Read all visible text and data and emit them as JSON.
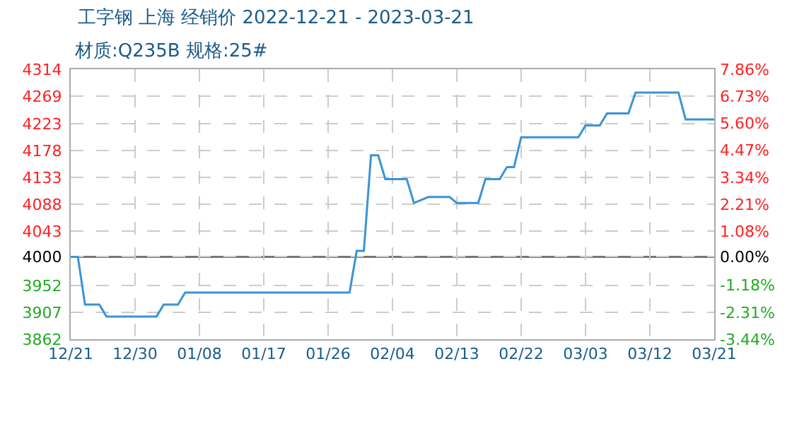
{
  "chart_data": {
    "type": "line",
    "title": "工字钢 上海 经销价 2022-12-21 - 2023-03-21",
    "subtitle": "材质:Q235B 规格:25#",
    "x": [
      "2022-12-21",
      "2022-12-22",
      "2022-12-23",
      "2022-12-25",
      "2022-12-26",
      "2023-01-02",
      "2023-01-03",
      "2023-01-05",
      "2023-01-06",
      "2023-01-29",
      "2023-01-30",
      "2023-01-31",
      "2023-02-01",
      "2023-02-02",
      "2023-02-03",
      "2023-02-06",
      "2023-02-07",
      "2023-02-09",
      "2023-02-12",
      "2023-02-13",
      "2023-02-16",
      "2023-02-17",
      "2023-02-19",
      "2023-02-20",
      "2023-02-21",
      "2023-02-22",
      "2023-03-02",
      "2023-03-03",
      "2023-03-05",
      "2023-03-06",
      "2023-03-09",
      "2023-03-10",
      "2023-03-16",
      "2023-03-17",
      "2023-03-21"
    ],
    "series": [
      {
        "color": "#3a94d4",
        "values": [
          4000,
          4000,
          3920,
          3920,
          3900,
          3900,
          3920,
          3920,
          3940,
          3940,
          4010,
          4010,
          4170,
          4170,
          4130,
          4130,
          4090,
          4100,
          4100,
          4090,
          4090,
          4130,
          4130,
          4150,
          4150,
          4200,
          4200,
          4220,
          4220,
          4240,
          4240,
          4275,
          4275,
          4230,
          4230
        ]
      }
    ],
    "xlim": [
      "2022-12-21",
      "2023-03-21"
    ],
    "xticks": [
      {
        "value": "2022-12-21",
        "label": "12/21"
      },
      {
        "value": "2022-12-30",
        "label": "12/30"
      },
      {
        "value": "2023-01-08",
        "label": "01/08"
      },
      {
        "value": "2023-01-17",
        "label": "01/17"
      },
      {
        "value": "2023-01-26",
        "label": "01/26"
      },
      {
        "value": "2023-02-04",
        "label": "02/04"
      },
      {
        "value": "2023-02-13",
        "label": "02/13"
      },
      {
        "value": "2023-02-22",
        "label": "02/22"
      },
      {
        "value": "2023-03-03",
        "label": "03/03"
      },
      {
        "value": "2023-03-12",
        "label": "03/12"
      },
      {
        "value": "2023-03-21",
        "label": "03/21"
      }
    ],
    "ylim": [
      3862,
      4314
    ],
    "yticks": [
      3862,
      3907,
      3952,
      4000,
      4043,
      4088,
      4133,
      4178,
      4223,
      4269,
      4314
    ],
    "y2lim": [
      -3.44,
      7.86
    ],
    "y2ticks": [
      {
        "value": -3.44,
        "label": "-3.44%"
      },
      {
        "value": -2.31,
        "label": "-2.31%"
      },
      {
        "value": -1.18,
        "label": "-1.18%"
      },
      {
        "value": 0,
        "label": "0.00%"
      },
      {
        "value": 1.08,
        "label": "1.08%"
      },
      {
        "value": 2.21,
        "label": "2.21%"
      },
      {
        "value": 3.34,
        "label": "3.34%"
      },
      {
        "value": 4.47,
        "label": "4.47%"
      },
      {
        "value": 5.6,
        "label": "5.60%"
      },
      {
        "value": 6.73,
        "label": "6.73%"
      },
      {
        "value": 7.86,
        "label": "7.86%"
      }
    ],
    "ref_lines": [
      {
        "axis": "y",
        "value": 4000,
        "color": "#777777"
      }
    ],
    "grid": true,
    "marker": "none",
    "line_style": "solid"
  }
}
